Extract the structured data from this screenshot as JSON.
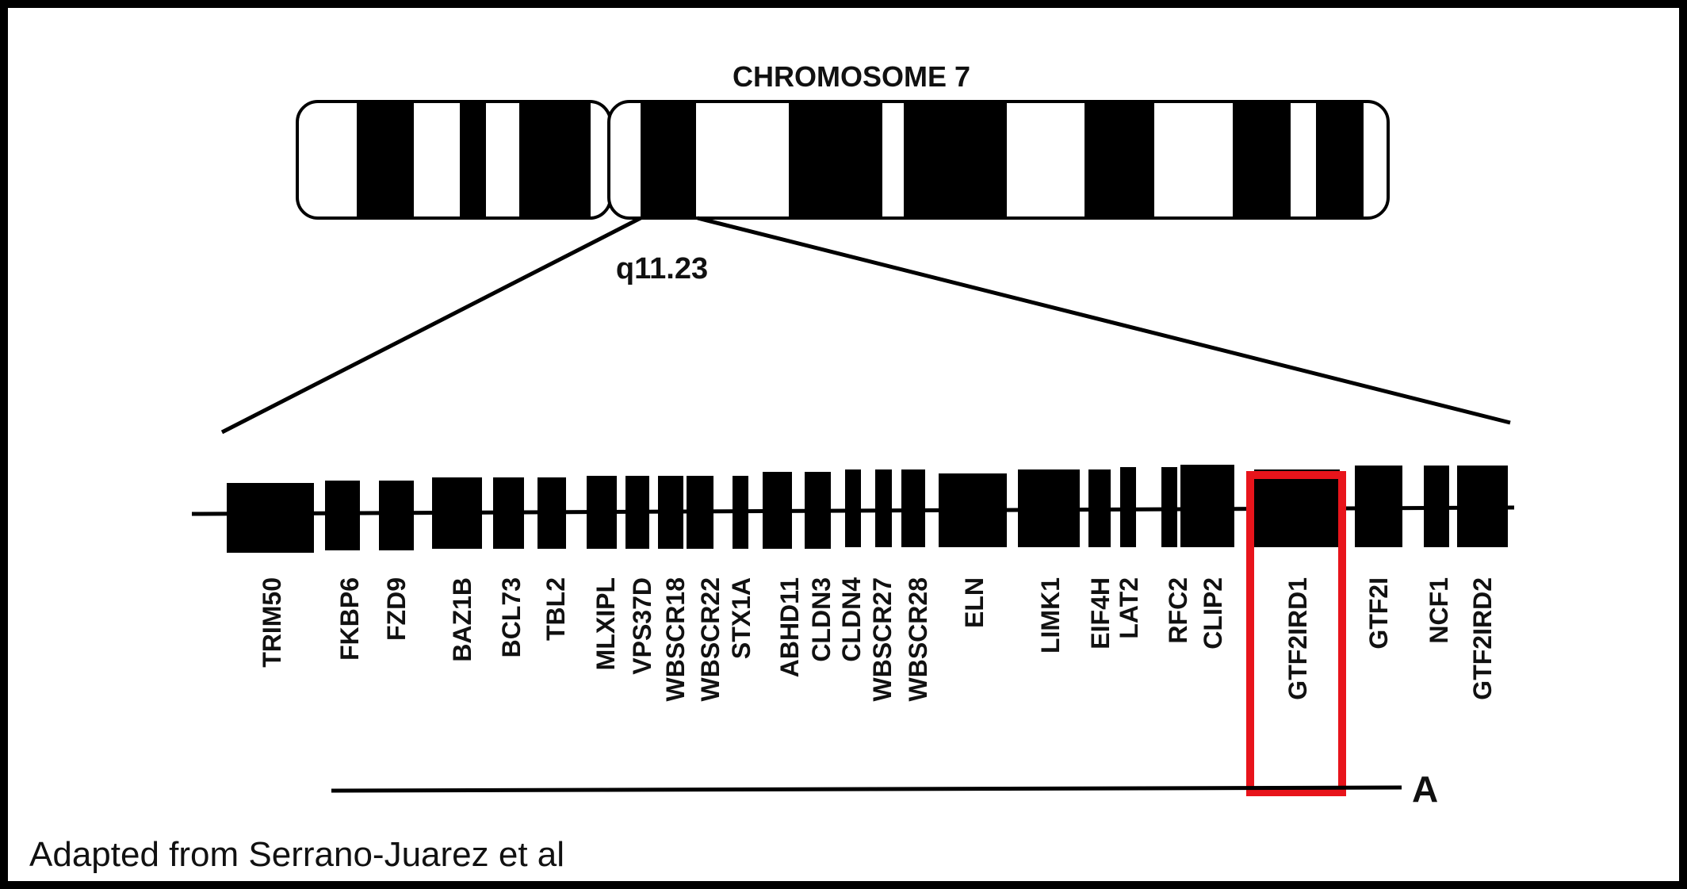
{
  "figure": {
    "title": "CHROMOSOME 7",
    "band": "q11.23",
    "genes": [
      {
        "name": "TRIM50"
      },
      {
        "name": "FKBP6"
      },
      {
        "name": "FZD9"
      },
      {
        "name": "BAZ1B"
      },
      {
        "name": "BCL73"
      },
      {
        "name": "TBL2"
      },
      {
        "name": "MLXIPL"
      },
      {
        "name": "VPS37D"
      },
      {
        "name": "WBSCR18"
      },
      {
        "name": "WBSCR22"
      },
      {
        "name": "STX1A"
      },
      {
        "name": "ABHD11"
      },
      {
        "name": "CLDN3"
      },
      {
        "name": "CLDN4"
      },
      {
        "name": "WBSCR27"
      },
      {
        "name": "WBSCR28"
      },
      {
        "name": "ELN"
      },
      {
        "name": "LIMK1"
      },
      {
        "name": "EIF4H"
      },
      {
        "name": "LAT2"
      },
      {
        "name": "RFC2"
      },
      {
        "name": "CLIP2"
      },
      {
        "name": "GTF2IRD1",
        "highlighted": true
      },
      {
        "name": "GTF2I"
      },
      {
        "name": "NCF1"
      },
      {
        "name": "GTF2IRD2"
      }
    ],
    "highlight_color": "#e8141b",
    "panel_letter": "A",
    "caption": "Adapted from Serrano-Juarez et al"
  }
}
